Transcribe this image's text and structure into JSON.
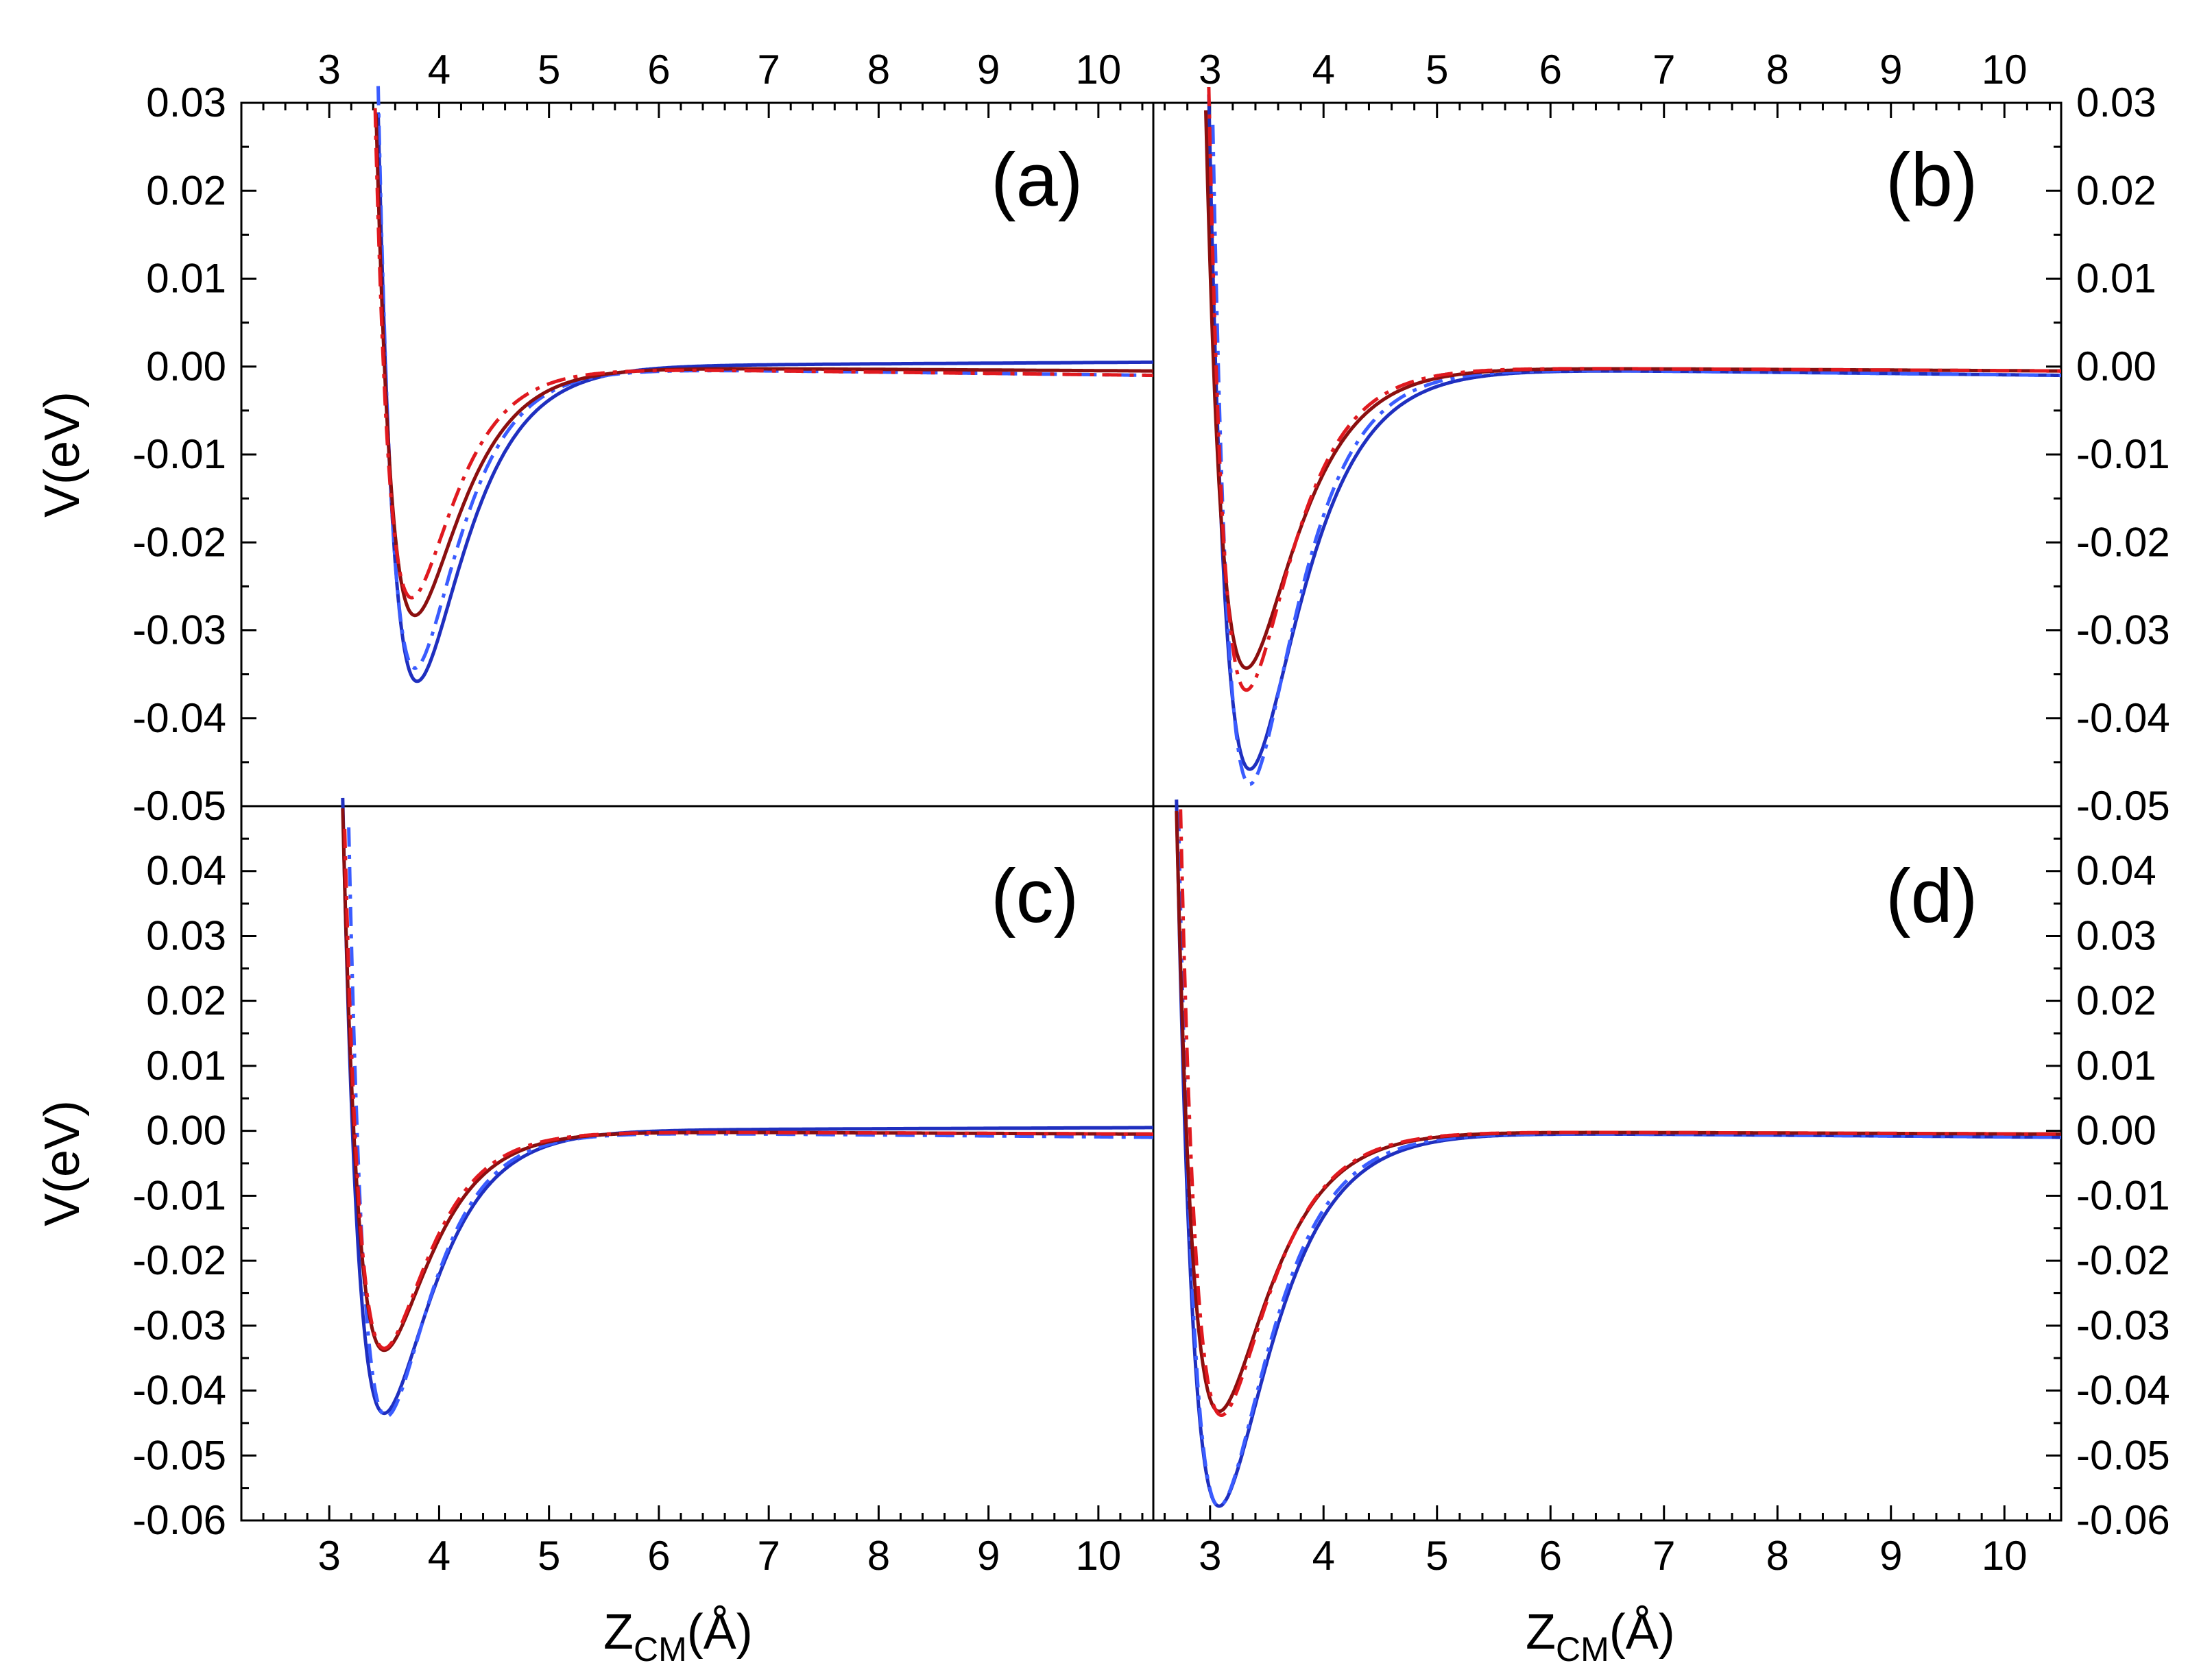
{
  "chart_data": [
    {
      "panel": "(a)",
      "type": "line",
      "xlim": [
        2.2,
        10.5
      ],
      "ylim": [
        -0.05,
        0.03
      ],
      "xticks": [
        "3",
        "4",
        "5",
        "6",
        "7",
        "8",
        "9",
        "10"
      ],
      "yticks": [
        "-0.05",
        "-0.04",
        "-0.03",
        "-0.02",
        "-0.01",
        "0.00",
        "0.01",
        "0.02",
        "0.03"
      ],
      "ylabel": "V(eV)",
      "xlabel": "",
      "x_tick_side": "top",
      "y_tick_side": "left",
      "series": [
        {
          "name": "blue-solid",
          "color": "#1f2fbf",
          "style": "solid",
          "depth": -0.0358,
          "r0": 3.8,
          "a": 2.4,
          "far": 0.0005
        },
        {
          "name": "blue-dashdot",
          "color": "#3a5cff",
          "style": "dashdot",
          "depth": -0.0343,
          "r0": 3.78,
          "a": 2.6,
          "far": -0.001
        },
        {
          "name": "red-solid",
          "color": "#8b0f0f",
          "style": "solid",
          "depth": -0.0283,
          "r0": 3.78,
          "a": 2.5,
          "far": -0.0005
        },
        {
          "name": "red-dashdot",
          "color": "#e0191f",
          "style": "dashdot",
          "depth": -0.0263,
          "r0": 3.75,
          "a": 2.7,
          "far": -0.001
        }
      ]
    },
    {
      "panel": "(b)",
      "type": "line",
      "xlim": [
        2.5,
        10.5
      ],
      "ylim": [
        -0.05,
        0.03
      ],
      "xticks": [
        "3",
        "4",
        "5",
        "6",
        "7",
        "8",
        "9",
        "10"
      ],
      "yticks": [
        "-0.05",
        "-0.04",
        "-0.03",
        "-0.02",
        "-0.01",
        "0.00",
        "0.01",
        "0.02",
        "0.03"
      ],
      "ylabel": "",
      "xlabel": "",
      "x_tick_side": "top",
      "y_tick_side": "right",
      "series": [
        {
          "name": "blue-solid",
          "color": "#1f2fbf",
          "style": "solid",
          "depth": -0.0458,
          "r0": 3.35,
          "a": 2.3,
          "far": -0.001
        },
        {
          "name": "blue-dashdot",
          "color": "#3a5cff",
          "style": "dashdot",
          "depth": -0.0475,
          "r0": 3.35,
          "a": 2.5,
          "far": -0.001
        },
        {
          "name": "red-solid",
          "color": "#8b0f0f",
          "style": "solid",
          "depth": -0.0343,
          "r0": 3.32,
          "a": 2.4,
          "far": -0.0005
        },
        {
          "name": "red-dashdot",
          "color": "#e0191f",
          "style": "dashdot",
          "depth": -0.0368,
          "r0": 3.32,
          "a": 2.6,
          "far": -0.0005
        }
      ]
    },
    {
      "panel": "(c)",
      "type": "line",
      "xlim": [
        2.2,
        10.5
      ],
      "ylim": [
        -0.06,
        0.05
      ],
      "xticks": [
        "3",
        "4",
        "5",
        "6",
        "7",
        "8",
        "9",
        "10"
      ],
      "yticks": [
        "-0.06",
        "-0.05",
        "-0.04",
        "-0.03",
        "-0.02",
        "-0.01",
        "0.00",
        "0.01",
        "0.02",
        "0.03",
        "0.04"
      ],
      "ylabel": "V(eV)",
      "xlabel": "ZCM(Å)",
      "x_tick_side": "bottom",
      "y_tick_side": "left",
      "series": [
        {
          "name": "blue-solid",
          "color": "#1f2fbf",
          "style": "solid",
          "depth": -0.0435,
          "r0": 3.5,
          "a": 2.4,
          "far": 0.0005
        },
        {
          "name": "blue-dashdot",
          "color": "#3a5cff",
          "style": "dashdot",
          "depth": -0.044,
          "r0": 3.52,
          "a": 2.6,
          "far": -0.001
        },
        {
          "name": "red-solid",
          "color": "#8b0f0f",
          "style": "solid",
          "depth": -0.0338,
          "r0": 3.5,
          "a": 2.5,
          "far": -0.0005
        },
        {
          "name": "red-dashdot",
          "color": "#e0191f",
          "style": "dashdot",
          "depth": -0.0335,
          "r0": 3.5,
          "a": 2.6,
          "far": -0.0005
        }
      ]
    },
    {
      "panel": "(d)",
      "type": "line",
      "xlim": [
        2.5,
        10.5
      ],
      "ylim": [
        -0.06,
        0.05
      ],
      "xticks": [
        "3",
        "4",
        "5",
        "6",
        "7",
        "8",
        "9",
        "10"
      ],
      "yticks": [
        "-0.06",
        "-0.05",
        "-0.04",
        "-0.03",
        "-0.02",
        "-0.01",
        "0.00",
        "0.01",
        "0.02",
        "0.03",
        "0.04"
      ],
      "ylabel": "",
      "xlabel": "ZCM(Å)",
      "x_tick_side": "bottom",
      "y_tick_side": "right",
      "series": [
        {
          "name": "blue-solid",
          "color": "#1f2fbf",
          "style": "solid",
          "depth": -0.0578,
          "r0": 3.08,
          "a": 2.3,
          "far": -0.001
        },
        {
          "name": "blue-dashdot",
          "color": "#3a5cff",
          "style": "dashdot",
          "depth": -0.0578,
          "r0": 3.08,
          "a": 2.4,
          "far": -0.001
        },
        {
          "name": "red-solid",
          "color": "#8b0f0f",
          "style": "solid",
          "depth": -0.0432,
          "r0": 3.08,
          "a": 2.4,
          "far": -0.0005
        },
        {
          "name": "red-dashdot",
          "color": "#e0191f",
          "style": "dashdot",
          "depth": -0.0438,
          "r0": 3.1,
          "a": 2.5,
          "far": -0.0005
        }
      ]
    }
  ],
  "labels": {
    "a": "(a)",
    "b": "(b)",
    "c": "(c)",
    "d": "(d)",
    "ylabel_top": "V(eV)",
    "ylabel_bottom": "V(eV)",
    "xlabel_main": "Z",
    "xlabel_sub": "CM",
    "xlabel_unit": "(Å)"
  }
}
